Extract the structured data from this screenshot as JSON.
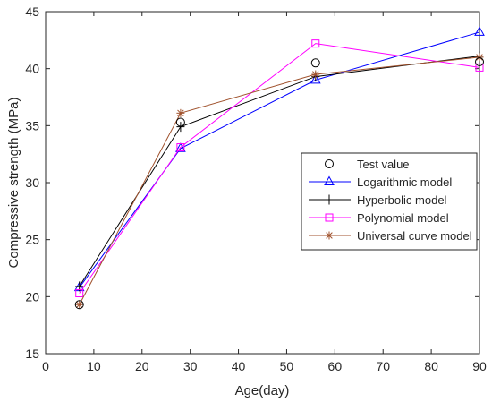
{
  "chart_data": {
    "type": "line",
    "xlabel": "Age(day)",
    "ylabel": "Compressive strength (MPa)",
    "xlim": [
      0,
      90
    ],
    "ylim": [
      15,
      45
    ],
    "xticks": [
      0,
      10,
      20,
      30,
      40,
      50,
      60,
      70,
      80,
      90
    ],
    "yticks": [
      15,
      20,
      25,
      30,
      35,
      40,
      45
    ],
    "grid": false,
    "legend_position": "right",
    "series": [
      {
        "name": "Test value",
        "marker": "circle",
        "line": false,
        "color": "#000000",
        "x": [
          7,
          28,
          56,
          90
        ],
        "y": [
          19.3,
          35.3,
          40.5,
          40.6
        ]
      },
      {
        "name": "Logarithmic model",
        "marker": "triangle",
        "line": true,
        "color": "#0000ff",
        "x": [
          7,
          28,
          56,
          90
        ],
        "y": [
          20.8,
          33.0,
          39.0,
          43.2
        ]
      },
      {
        "name": "Hyperbolic model",
        "marker": "plus",
        "line": true,
        "color": "#000000",
        "x": [
          7,
          28,
          56,
          90
        ],
        "y": [
          20.9,
          34.9,
          39.3,
          41.1
        ]
      },
      {
        "name": "Polynomial model",
        "marker": "square",
        "line": true,
        "color": "#ff00ff",
        "x": [
          7,
          28,
          56,
          90
        ],
        "y": [
          20.3,
          33.1,
          42.2,
          40.1
        ]
      },
      {
        "name": "Universal curve model",
        "marker": "star",
        "line": true,
        "color": "#a0522d",
        "x": [
          7,
          28,
          56,
          90
        ],
        "y": [
          19.3,
          36.1,
          39.5,
          41.0
        ]
      }
    ]
  }
}
